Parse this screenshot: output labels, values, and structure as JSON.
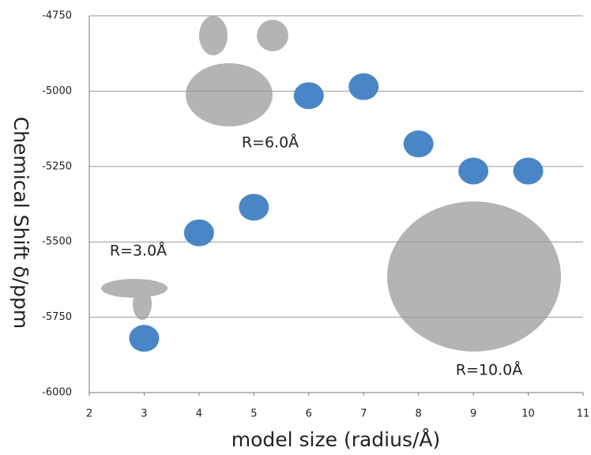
{
  "chart_data": {
    "type": "scatter",
    "x_label": "model size (radius/Å)",
    "y_label": "Chemical Shift δ/ppm",
    "x": [
      3,
      4,
      5,
      6,
      7,
      8,
      9,
      10
    ],
    "series": [
      {
        "color": "#4a86c5",
        "values": [
          -5820,
          -5470,
          -5385,
          -5015,
          -4985,
          -5175,
          -5265,
          -5265
        ]
      }
    ],
    "xlim": [
      2,
      11
    ],
    "xticks": [
      2,
      3,
      4,
      5,
      6,
      7,
      8,
      9,
      10,
      11
    ],
    "ylim": [
      -6000,
      -4750
    ],
    "yticks": [
      -6000,
      -5750,
      -5500,
      -5250,
      -5000,
      -4750
    ],
    "grid": true,
    "annotations": [
      "R=3.0Å",
      "R=6.0Å",
      "R=10.0Å"
    ]
  }
}
